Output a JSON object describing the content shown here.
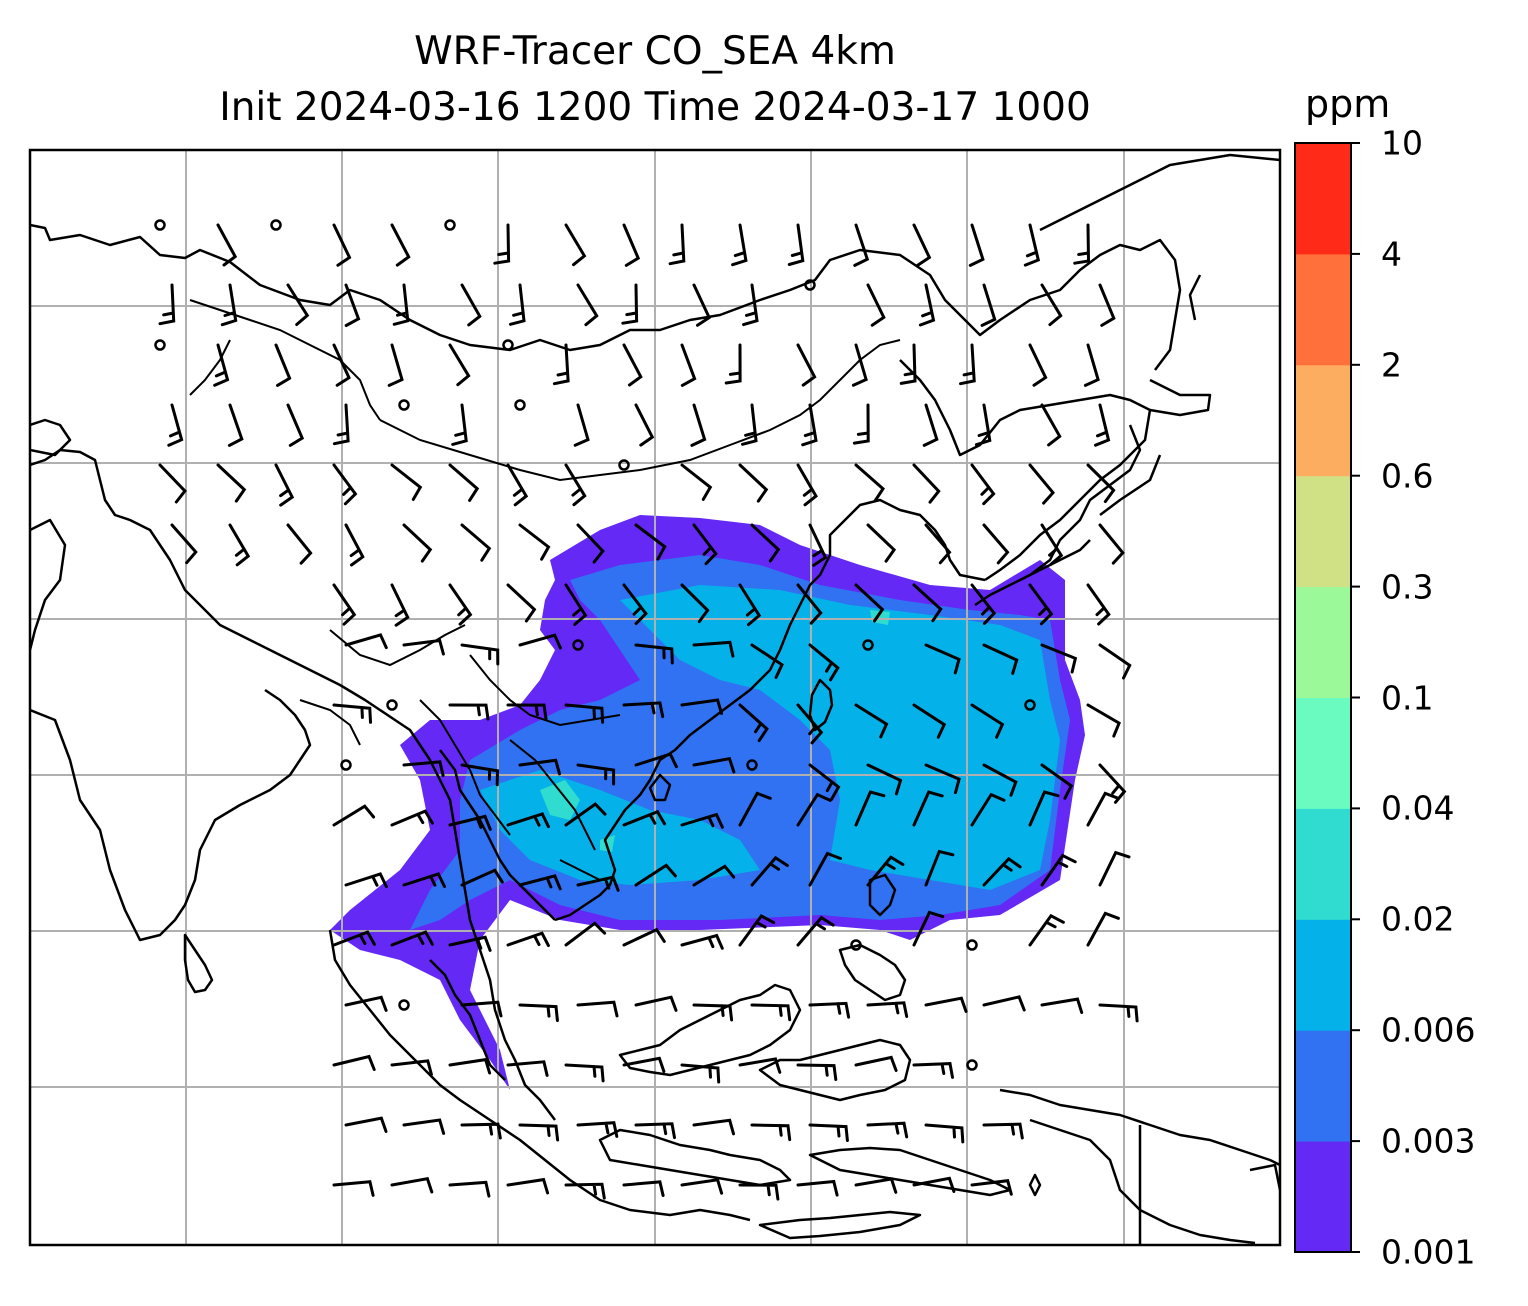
{
  "title_line1": "WRF-Tracer CO_SEA 4km",
  "title_line2": "Init 2024-03-16 1200 Time 2024-03-17 1000",
  "colorbar": {
    "unit": "ppm",
    "levels": [
      "0.001",
      "0.003",
      "0.006",
      "0.02",
      "0.04",
      "0.1",
      "0.3",
      "0.6",
      "2",
      "4",
      "10"
    ],
    "colors": [
      "#6429f5",
      "#3072f2",
      "#04b2e9",
      "#2fdccf",
      "#6afbc0",
      "#9bf99a",
      "#d0e085",
      "#fdad60",
      "#ff703b",
      "#ff2a18"
    ]
  },
  "map": {
    "land_color": "#ffffff",
    "coast_color": "#000000",
    "gridline_color": "#b0b0b0",
    "gridlines": true,
    "wind_barbs": true
  }
}
